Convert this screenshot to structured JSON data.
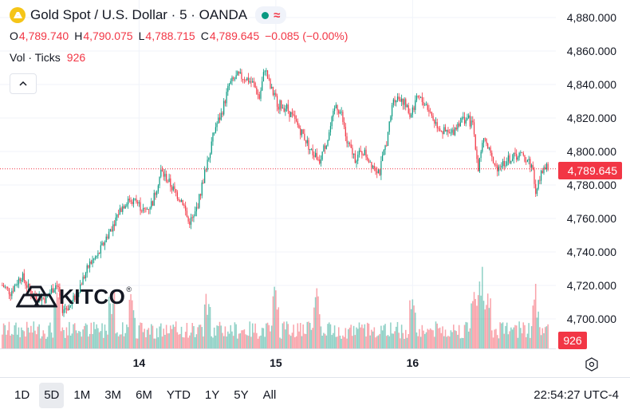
{
  "header": {
    "title": "Gold Spot / U.S. Dollar · 5 · OANDA",
    "ohlc": [
      {
        "key": "O",
        "value": "4,789.740"
      },
      {
        "key": "H",
        "value": "4,790.075"
      },
      {
        "key": "L",
        "value": "4,788.715"
      },
      {
        "key": "C",
        "value": "4,789.645"
      }
    ],
    "change": "−0.085 (−0.00%)",
    "volume_label": "Vol · Ticks",
    "volume_value": "926"
  },
  "colors": {
    "up": "#089981",
    "down": "#f23645",
    "text": "#131722",
    "grid": "#f0f3fa",
    "axis_text": "#131722"
  },
  "watermark": {
    "text": "KITCO",
    "reg": "®"
  },
  "price_tag": "4,789.645",
  "volume_tag": "926",
  "time_ranges": [
    "1D",
    "5D",
    "1M",
    "3M",
    "6M",
    "YTD",
    "1Y",
    "5Y",
    "All"
  ],
  "active_range": "5D",
  "clock": "22:54:27 UTC-4",
  "chart_data": {
    "type": "candlestick",
    "title": "Gold Spot / U.S. Dollar · 5 · OANDA",
    "y_axis": {
      "ticks": [
        "4,700.000",
        "4,720.000",
        "4,740.000",
        "4,760.000",
        "4,780.000",
        "4,800.000",
        "4,820.000",
        "4,840.000",
        "4,860.000",
        "4,880.000"
      ],
      "tick_values": [
        4700,
        4720,
        4740,
        4760,
        4780,
        4800,
        4820,
        4840,
        4860,
        4880
      ],
      "range": [
        4683,
        4892
      ]
    },
    "x_axis": {
      "tick_labels": [
        "14",
        "15",
        "16"
      ],
      "tick_bar_index": [
        100,
        200,
        300
      ],
      "bar_count": 400
    },
    "last_close": 4789.645,
    "close_path": [
      {
        "i": 0,
        "v": 4720
      },
      {
        "i": 6,
        "v": 4716
      },
      {
        "i": 14,
        "v": 4726
      },
      {
        "i": 22,
        "v": 4714
      },
      {
        "i": 32,
        "v": 4712
      },
      {
        "i": 40,
        "v": 4722
      },
      {
        "i": 44,
        "v": 4706
      },
      {
        "i": 50,
        "v": 4708
      },
      {
        "i": 58,
        "v": 4722
      },
      {
        "i": 64,
        "v": 4733
      },
      {
        "i": 70,
        "v": 4738
      },
      {
        "i": 78,
        "v": 4752
      },
      {
        "i": 86,
        "v": 4765
      },
      {
        "i": 92,
        "v": 4772
      },
      {
        "i": 98,
        "v": 4770
      },
      {
        "i": 104,
        "v": 4764
      },
      {
        "i": 110,
        "v": 4770
      },
      {
        "i": 116,
        "v": 4788
      },
      {
        "i": 120,
        "v": 4784
      },
      {
        "i": 126,
        "v": 4776
      },
      {
        "i": 132,
        "v": 4770
      },
      {
        "i": 136,
        "v": 4758
      },
      {
        "i": 140,
        "v": 4760
      },
      {
        "i": 144,
        "v": 4772
      },
      {
        "i": 150,
        "v": 4795
      },
      {
        "i": 156,
        "v": 4815
      },
      {
        "i": 160,
        "v": 4822
      },
      {
        "i": 166,
        "v": 4840
      },
      {
        "i": 172,
        "v": 4845
      },
      {
        "i": 178,
        "v": 4844
      },
      {
        "i": 184,
        "v": 4840
      },
      {
        "i": 188,
        "v": 4832
      },
      {
        "i": 192,
        "v": 4850
      },
      {
        "i": 196,
        "v": 4838
      },
      {
        "i": 202,
        "v": 4828
      },
      {
        "i": 208,
        "v": 4826
      },
      {
        "i": 214,
        "v": 4818
      },
      {
        "i": 220,
        "v": 4810
      },
      {
        "i": 226,
        "v": 4800
      },
      {
        "i": 232,
        "v": 4795
      },
      {
        "i": 238,
        "v": 4808
      },
      {
        "i": 244,
        "v": 4828
      },
      {
        "i": 248,
        "v": 4822
      },
      {
        "i": 252,
        "v": 4805
      },
      {
        "i": 258,
        "v": 4796
      },
      {
        "i": 264,
        "v": 4800
      },
      {
        "i": 270,
        "v": 4793
      },
      {
        "i": 276,
        "v": 4788
      },
      {
        "i": 282,
        "v": 4810
      },
      {
        "i": 286,
        "v": 4832
      },
      {
        "i": 292,
        "v": 4832
      },
      {
        "i": 298,
        "v": 4822
      },
      {
        "i": 304,
        "v": 4832
      },
      {
        "i": 310,
        "v": 4828
      },
      {
        "i": 316,
        "v": 4818
      },
      {
        "i": 322,
        "v": 4812
      },
      {
        "i": 328,
        "v": 4810
      },
      {
        "i": 334,
        "v": 4818
      },
      {
        "i": 340,
        "v": 4820
      },
      {
        "i": 344,
        "v": 4815
      },
      {
        "i": 348,
        "v": 4790
      },
      {
        "i": 352,
        "v": 4808
      },
      {
        "i": 356,
        "v": 4800
      },
      {
        "i": 360,
        "v": 4790
      },
      {
        "i": 366,
        "v": 4793
      },
      {
        "i": 372,
        "v": 4796
      },
      {
        "i": 378,
        "v": 4798
      },
      {
        "i": 384,
        "v": 4795
      },
      {
        "i": 388,
        "v": 4790
      },
      {
        "i": 390,
        "v": 4772
      },
      {
        "i": 394,
        "v": 4790
      },
      {
        "i": 399,
        "v": 4789.6
      }
    ],
    "volume": {
      "last": 926,
      "description": "Tick volume histogram, green for up bars, red for down bars"
    }
  }
}
